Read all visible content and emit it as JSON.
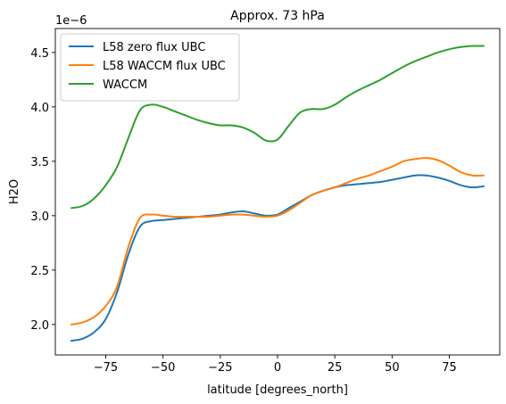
{
  "chart_data": {
    "type": "line",
    "title": "Approx. 73 hPa",
    "xlabel": "latitude [degrees_north]",
    "ylabel": "H2O",
    "y_offset_label": "1e−6",
    "xlim": [
      -97,
      97
    ],
    "ylim": [
      1.72,
      4.72
    ],
    "xticks": [
      -75,
      -50,
      -25,
      0,
      25,
      50,
      75
    ],
    "xtick_labels": [
      "−75",
      "−50",
      "−25",
      "0",
      "25",
      "50",
      "75"
    ],
    "yticks": [
      2.0,
      2.5,
      3.0,
      3.5,
      4.0,
      4.5
    ],
    "ytick_labels": [
      "2.0",
      "2.5",
      "3.0",
      "3.5",
      "4.0",
      "4.5"
    ],
    "grid": false,
    "legend_position": "upper-left",
    "x": [
      -90,
      -85,
      -80,
      -75,
      -70,
      -65,
      -60,
      -55,
      -50,
      -45,
      -40,
      -35,
      -30,
      -25,
      -20,
      -15,
      -10,
      -5,
      0,
      5,
      10,
      15,
      20,
      25,
      30,
      35,
      40,
      45,
      50,
      55,
      60,
      65,
      70,
      75,
      80,
      85,
      90
    ],
    "series": [
      {
        "name": "L58 zero flux UBC",
        "color": "#1f77b4",
        "values": [
          1.85,
          1.87,
          1.93,
          2.05,
          2.3,
          2.65,
          2.9,
          2.95,
          2.96,
          2.97,
          2.98,
          2.99,
          3.0,
          3.01,
          3.03,
          3.04,
          3.02,
          3.0,
          3.01,
          3.07,
          3.13,
          3.19,
          3.23,
          3.26,
          3.28,
          3.29,
          3.3,
          3.31,
          3.33,
          3.35,
          3.37,
          3.37,
          3.35,
          3.32,
          3.28,
          3.26,
          3.27
        ]
      },
      {
        "name": "L58 WACCM flux UBC",
        "color": "#ff7f0e",
        "values": [
          2.0,
          2.02,
          2.07,
          2.17,
          2.35,
          2.72,
          2.98,
          3.01,
          3.0,
          2.99,
          2.99,
          2.99,
          2.99,
          3.0,
          3.01,
          3.01,
          3.0,
          2.99,
          3.0,
          3.05,
          3.12,
          3.19,
          3.23,
          3.26,
          3.3,
          3.34,
          3.37,
          3.41,
          3.45,
          3.5,
          3.52,
          3.53,
          3.51,
          3.46,
          3.4,
          3.37,
          3.37
        ]
      },
      {
        "name": "WACCM",
        "color": "#2ca02c",
        "values": [
          3.07,
          3.09,
          3.16,
          3.28,
          3.45,
          3.72,
          3.97,
          4.02,
          4.0,
          3.96,
          3.92,
          3.88,
          3.85,
          3.83,
          3.83,
          3.81,
          3.76,
          3.69,
          3.7,
          3.83,
          3.95,
          3.98,
          3.98,
          4.02,
          4.09,
          4.15,
          4.2,
          4.25,
          4.31,
          4.37,
          4.42,
          4.46,
          4.5,
          4.53,
          4.55,
          4.56,
          4.56
        ]
      }
    ]
  }
}
